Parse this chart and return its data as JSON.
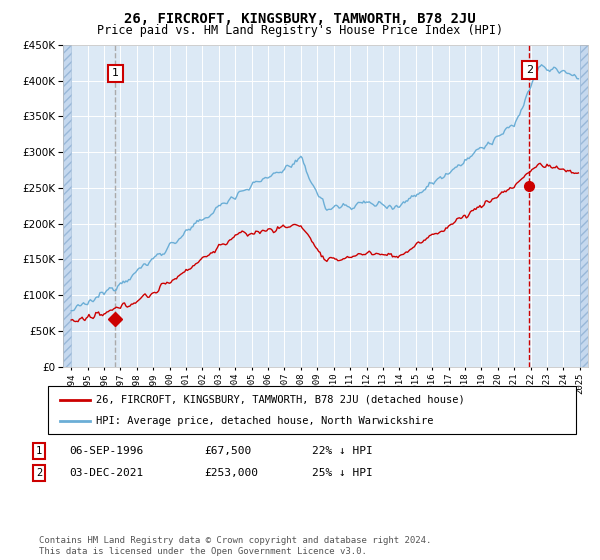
{
  "title": "26, FIRCROFT, KINGSBURY, TAMWORTH, B78 2JU",
  "subtitle": "Price paid vs. HM Land Registry's House Price Index (HPI)",
  "legend_entry1": "26, FIRCROFT, KINGSBURY, TAMWORTH, B78 2JU (detached house)",
  "legend_entry2": "HPI: Average price, detached house, North Warwickshire",
  "annotation1_label": "1",
  "annotation1_date": "06-SEP-1996",
  "annotation1_price": "£67,500",
  "annotation1_hpi": "22% ↓ HPI",
  "annotation2_label": "2",
  "annotation2_date": "03-DEC-2021",
  "annotation2_price": "£253,000",
  "annotation2_hpi": "25% ↓ HPI",
  "footer": "Contains HM Land Registry data © Crown copyright and database right 2024.\nThis data is licensed under the Open Government Licence v3.0.",
  "sale1_x": 1996.68,
  "sale1_y": 67500,
  "sale2_x": 2021.92,
  "sale2_y": 253000,
  "hpi_color": "#6baed6",
  "price_color": "#cc0000",
  "vline1_color": "#aaaaaa",
  "vline2_color": "#cc0000",
  "background_plot": "#dce9f5",
  "background_hatch": "#c5d8ee",
  "ylim": [
    0,
    450000
  ],
  "xlim_start": 1993.5,
  "xlim_end": 2025.5,
  "ytick_interval": 50000,
  "xtick_start": 1994,
  "xtick_end": 2025
}
